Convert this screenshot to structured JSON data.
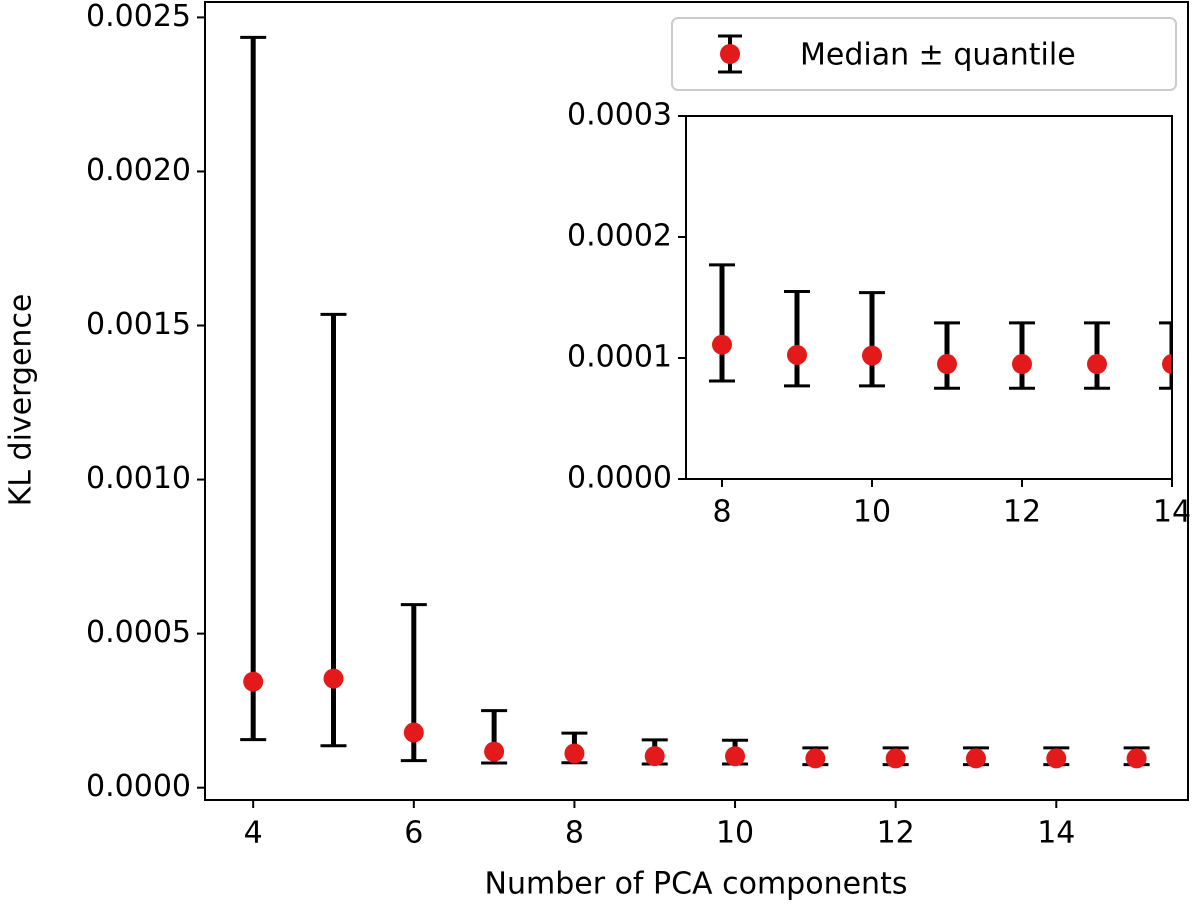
{
  "chart_data": {
    "type": "errorbar",
    "xlabel": "Number of PCA components",
    "ylabel": "KL divergence",
    "legend": "upper right",
    "xlim": [
      3.4,
      15.64
    ],
    "ylim": [
      -4e-05,
      0.00255
    ],
    "xticks": [
      4,
      6,
      8,
      10,
      12,
      14
    ],
    "yticks": [
      {
        "value": 0,
        "label": "0.0000"
      },
      {
        "value": 0.0005,
        "label": "0.0005"
      },
      {
        "value": 0.001,
        "label": "0.0010"
      },
      {
        "value": 0.0015,
        "label": "0.0015"
      },
      {
        "value": 0.002,
        "label": "0.0020"
      },
      {
        "value": 0.0025,
        "label": "0.0025"
      }
    ],
    "series": [
      {
        "name": "Median ± quantile",
        "color": "#e31a1c",
        "x": [
          4,
          5,
          6,
          7,
          8,
          9,
          10,
          11,
          12,
          13,
          14,
          15
        ],
        "values": [
          0.000344,
          0.000354,
          0.000179,
          0.000117,
          0.000111,
          0.0001025,
          0.000102,
          9.5e-05,
          9.5e-05,
          9.5e-05,
          9.5e-05,
          9.5e-05
        ],
        "lower": [
          0.000156,
          0.000136,
          8.77e-05,
          8e-05,
          8.1e-05,
          7.7e-05,
          7.7e-05,
          7.5e-05,
          7.5e-05,
          7.5e-05,
          7.5e-05,
          7.5e-05
        ],
        "upper": [
          0.002435,
          0.001536,
          0.000594,
          0.00025,
          0.000177,
          0.000155,
          0.000154,
          0.000129,
          0.000129,
          0.000129,
          0.000129,
          0.000129
        ]
      }
    ],
    "inset": {
      "xlim": [
        7.52,
        14
      ],
      "ylim": [
        0,
        0.0003
      ],
      "xticks": [
        8,
        10,
        12,
        14
      ],
      "yticks": [
        {
          "value": 0,
          "label": "0.0000"
        },
        {
          "value": 0.0001,
          "label": "0.0001"
        },
        {
          "value": 0.0002,
          "label": "0.0002"
        },
        {
          "value": 0.0003,
          "label": "0.0003"
        }
      ]
    }
  }
}
